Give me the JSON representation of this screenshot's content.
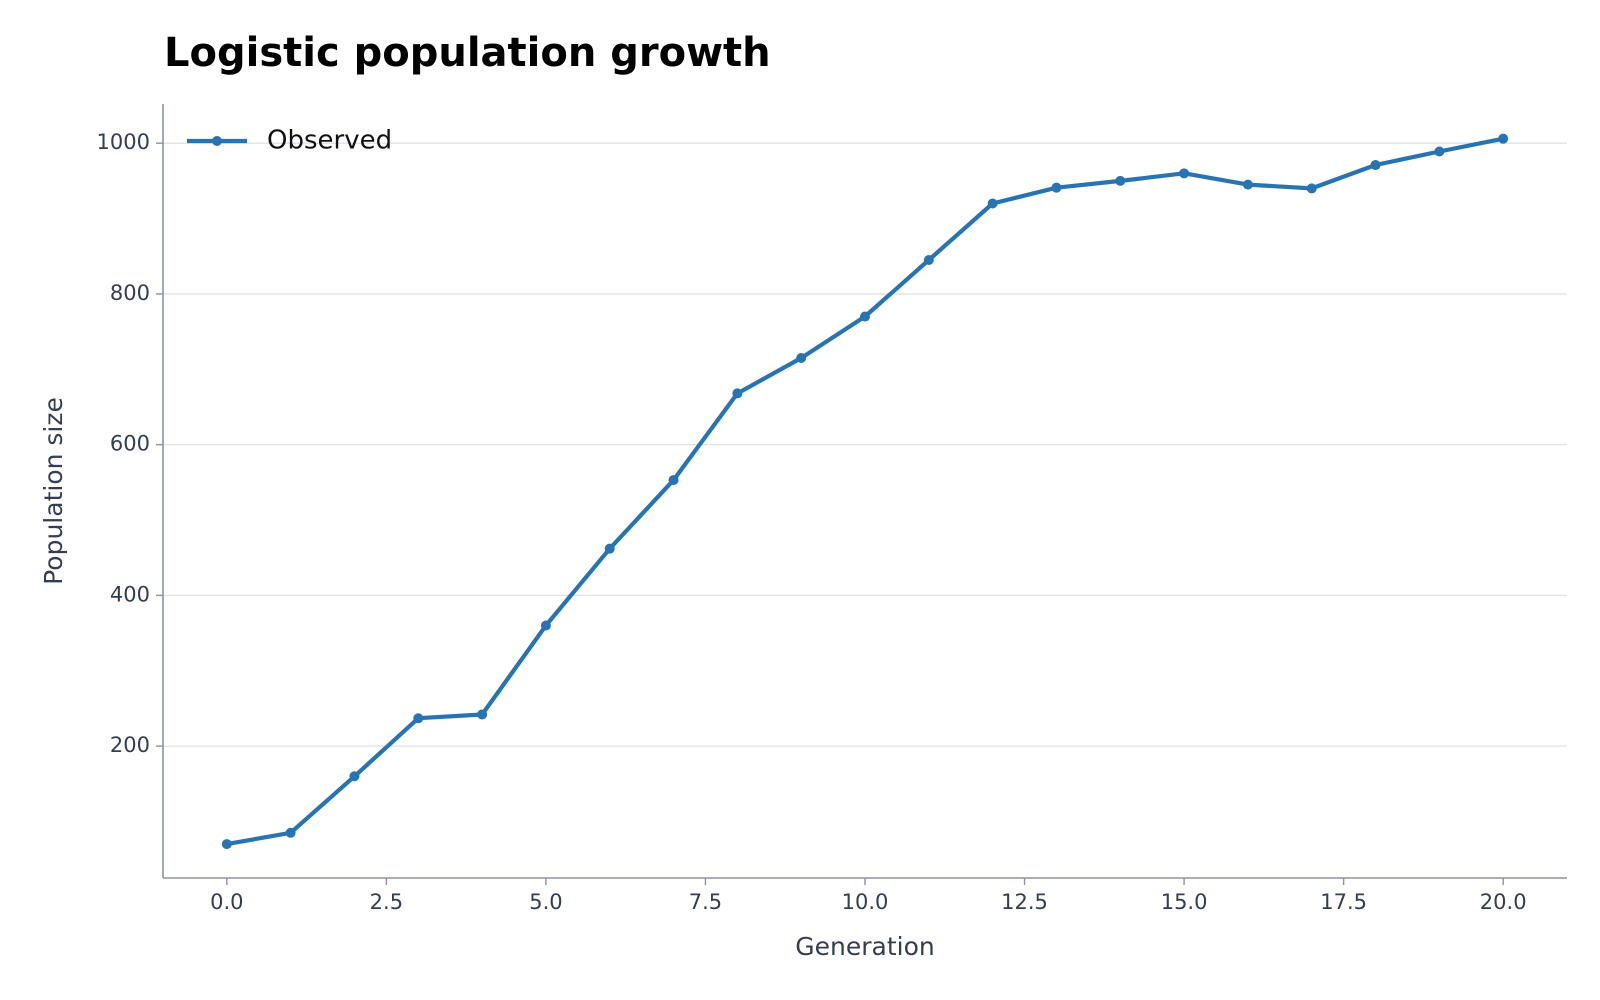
{
  "chart_data": {
    "type": "line",
    "title": "Logistic population growth",
    "xlabel": "Generation",
    "ylabel": "Population size",
    "xlim": [
      -1,
      21
    ],
    "ylim": [
      25,
      1052
    ],
    "xticks": [
      0,
      2.5,
      5,
      7.5,
      10,
      12.5,
      15,
      17.5,
      20
    ],
    "xtick_labels": [
      "0.0",
      "2.5",
      "5.0",
      "7.5",
      "10.0",
      "12.5",
      "15.0",
      "17.5",
      "20.0"
    ],
    "yticks": [
      200,
      400,
      600,
      800,
      1000
    ],
    "ytick_labels": [
      "200",
      "400",
      "600",
      "800",
      "1000"
    ],
    "grid": "horizontal",
    "legend_position": "top-left",
    "colors": {
      "series": "#2874b3",
      "grid": "#dde2ec",
      "axis": "#8a93a6",
      "text": "#333f50"
    },
    "series": [
      {
        "name": "Observed",
        "x": [
          0,
          1,
          2,
          3,
          4,
          5,
          6,
          7,
          8,
          9,
          10,
          11,
          12,
          13,
          14,
          15,
          16,
          17,
          18,
          19,
          20
        ],
        "values": [
          70,
          85,
          160,
          237,
          242,
          360,
          462,
          553,
          668,
          715,
          770,
          845,
          920,
          941,
          950,
          960,
          945,
          940,
          971,
          989,
          1006
        ]
      }
    ]
  }
}
